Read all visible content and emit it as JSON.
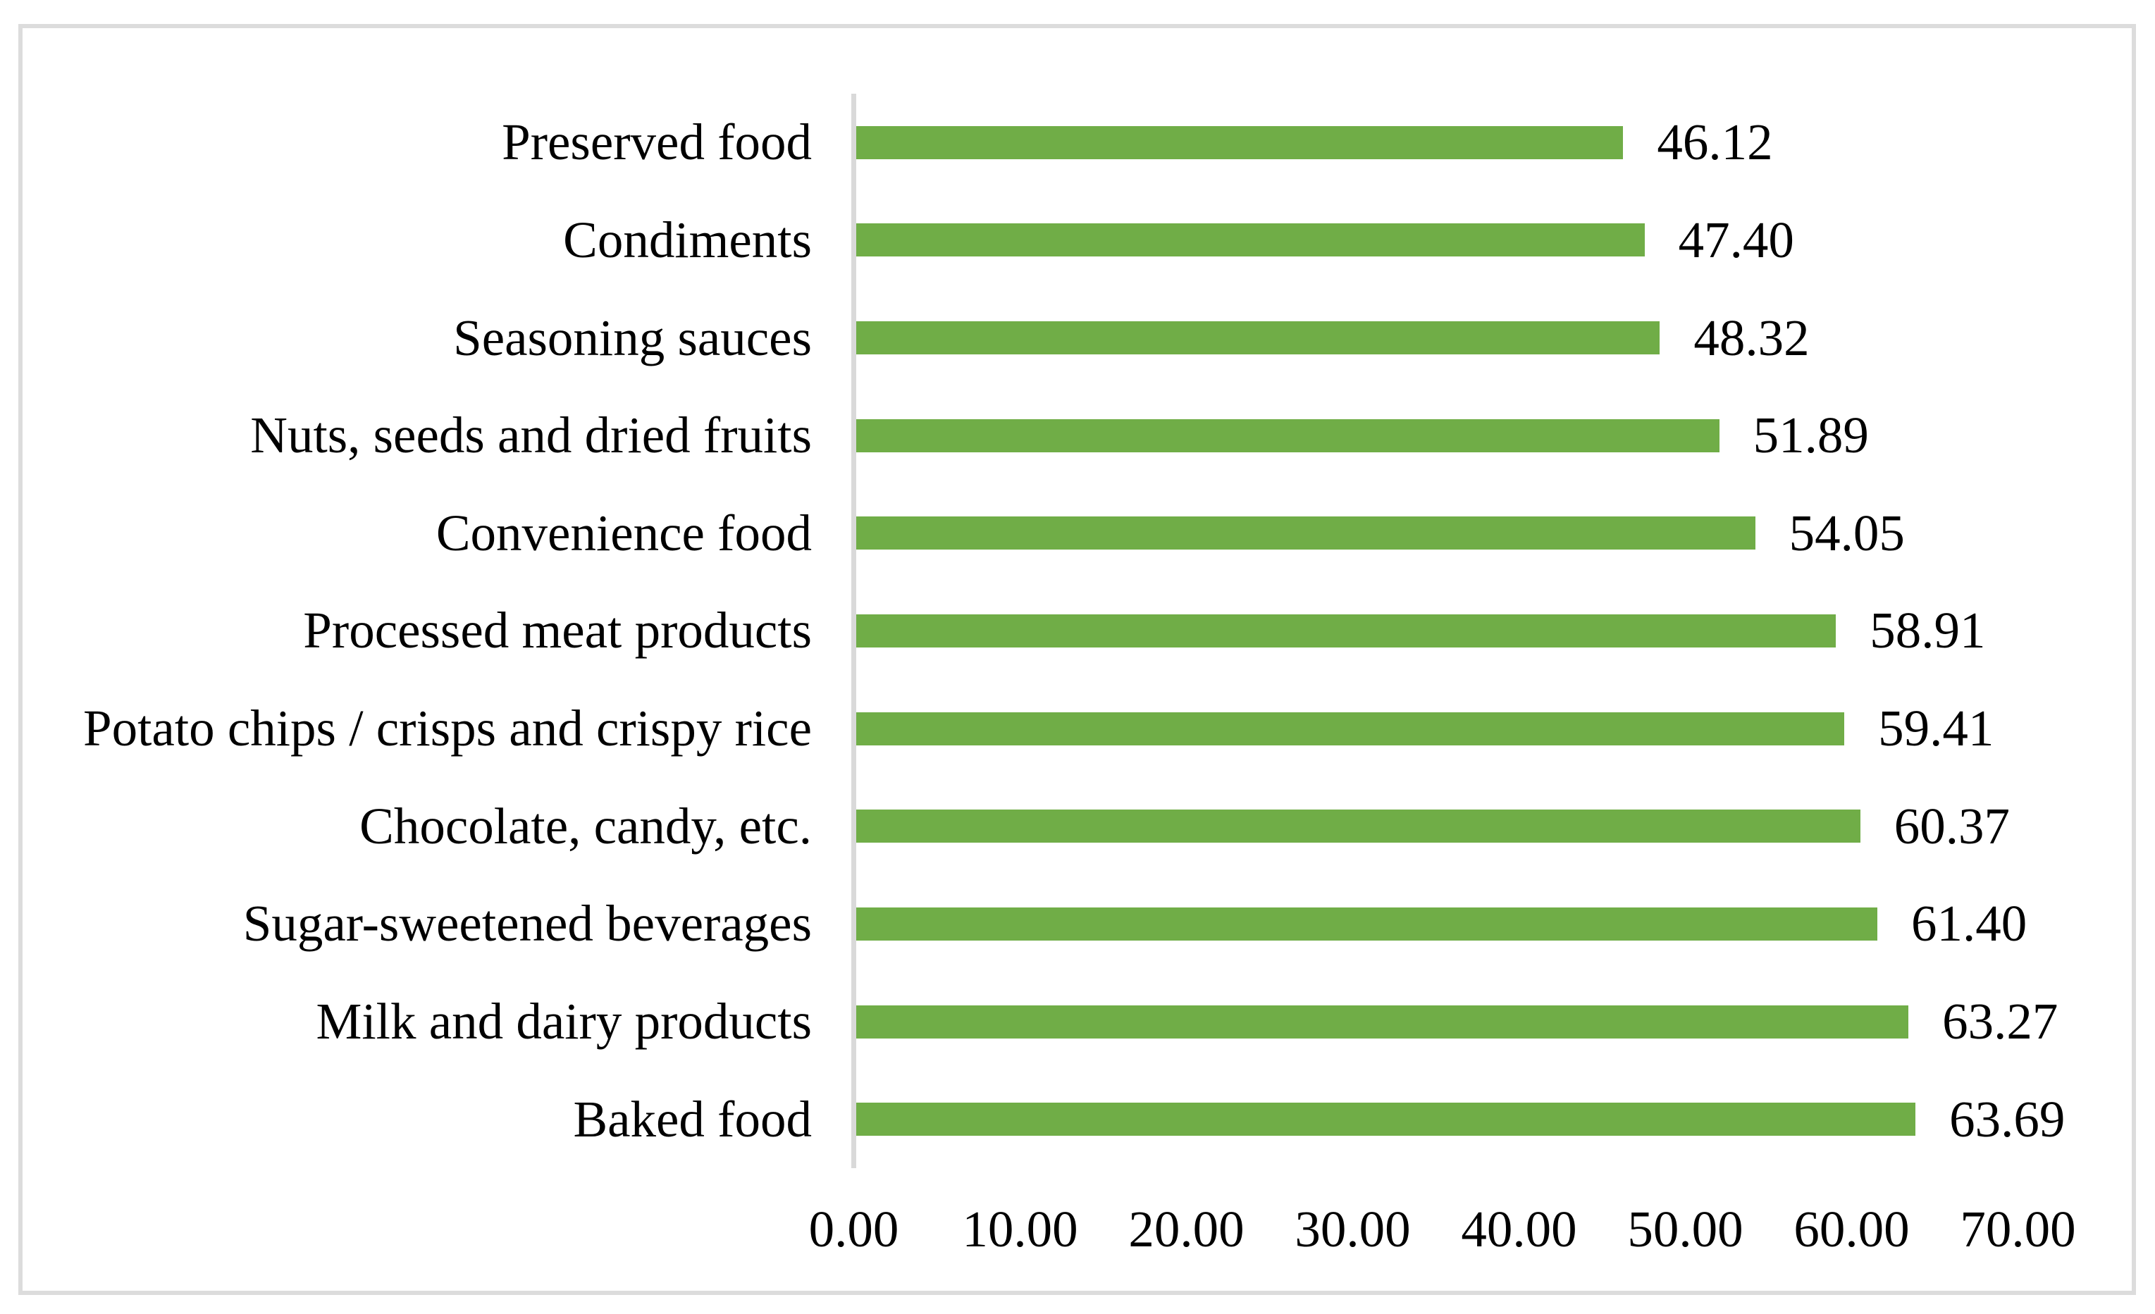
{
  "chart_data": {
    "type": "bar",
    "orientation": "horizontal",
    "title": "",
    "xlabel": "",
    "ylabel": "",
    "categories": [
      "Preserved food",
      "Condiments",
      "Seasoning sauces",
      "Nuts, seeds and dried fruits",
      "Convenience food",
      "Processed meat products",
      "Potato chips / crisps and crispy rice",
      "Chocolate, candy, etc.",
      "Sugar-sweetened beverages",
      "Milk and dairy products",
      "Baked food"
    ],
    "values": [
      46.12,
      47.4,
      48.32,
      51.89,
      54.05,
      58.91,
      59.41,
      60.37,
      61.4,
      63.27,
      63.69
    ],
    "value_labels": [
      "46.12",
      "47.40",
      "48.32",
      "51.89",
      "54.05",
      "58.91",
      "59.41",
      "60.37",
      "61.40",
      "63.27",
      "63.69"
    ],
    "x_ticks": [
      "0.00",
      "10.00",
      "20.00",
      "30.00",
      "40.00",
      "50.00",
      "60.00",
      "70.00"
    ],
    "xlim": [
      0,
      70
    ],
    "grid": false,
    "legend": "none",
    "bar_color": "#70AD47",
    "axis_color": "#d9d9d9",
    "frame_border_color": "#dcdcdc",
    "text_color": "#000000"
  }
}
